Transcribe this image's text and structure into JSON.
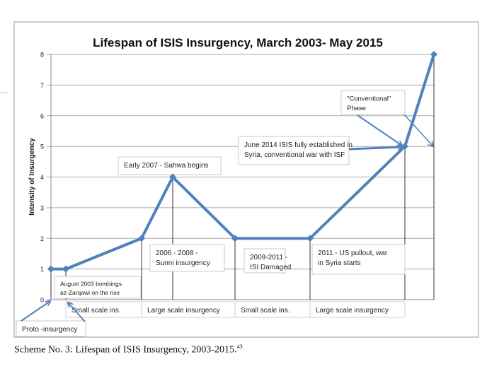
{
  "chart_data": {
    "type": "line",
    "title": "Lifespan of ISIS Insurgency, March 2003- May 2015",
    "xlabel": "",
    "ylabel": "Intensity of Insurgency",
    "ylim": [
      0,
      8
    ],
    "yticks": [
      0,
      1,
      2,
      3,
      4,
      5,
      6,
      7,
      8
    ],
    "grid": true,
    "legend": "none",
    "series": [
      {
        "name": "Intensity",
        "color": "#4F81BD",
        "points": [
          {
            "label": "March 2003",
            "y": 1
          },
          {
            "label": "August 2003",
            "y": 1
          },
          {
            "label": "2006",
            "y": 2
          },
          {
            "label": "Early 2007",
            "y": 4
          },
          {
            "label": "2009",
            "y": 2
          },
          {
            "label": "2011",
            "y": 2
          },
          {
            "label": "June 2014",
            "y": 5
          },
          {
            "label": "May 2015",
            "y": 8
          }
        ]
      }
    ],
    "annotations": [
      {
        "id": "proto",
        "text": [
          "Proto -insurgency"
        ]
      },
      {
        "id": "aug2003",
        "text": [
          "August 2003 bombings",
          "az-Zarqawi on the rise"
        ]
      },
      {
        "id": "sahwa",
        "text": [
          "Early 2007 - Sahwa begins"
        ]
      },
      {
        "id": "sunni",
        "text": [
          "2006 - 2008 -",
          "Sunni insurgency"
        ]
      },
      {
        "id": "isi",
        "text": [
          "2009-2011 -",
          "ISI Damaged"
        ]
      },
      {
        "id": "pullout",
        "text": [
          "2011 - US pullout, war",
          "in Syria starts"
        ]
      },
      {
        "id": "june2014",
        "text": [
          "June 2014 ISIS fully established in",
          "Syria,  conventional war with ISF"
        ]
      },
      {
        "id": "conventional",
        "text": [
          "\"Conventional\"",
          "Phase"
        ]
      }
    ],
    "phases": [
      "Small scale ins.",
      "Large scale insurgency",
      "Small scale ins.",
      "Large scale insurgency"
    ]
  },
  "caption": {
    "text": "Scheme No. 3: Lifespan of ISIS Insurgency, 2003-2015.",
    "footnote": "43"
  }
}
